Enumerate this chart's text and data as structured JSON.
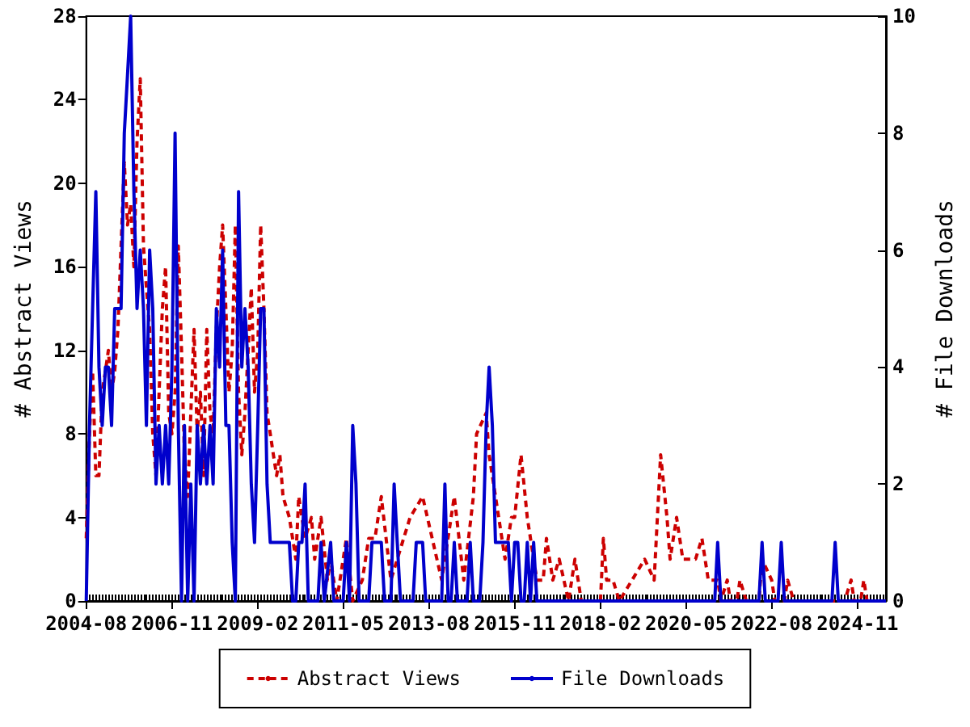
{
  "chart_data": {
    "type": "line",
    "xlabel": null,
    "ylabel": "# Abstract Views",
    "y2label": "# File Downloads",
    "xlim": [
      "2004-08",
      "2025-08"
    ],
    "xticks": [
      "2004-08",
      "2006-11",
      "2009-02",
      "2011-05",
      "2013-08",
      "2015-11",
      "2018-02",
      "2020-05",
      "2022-08",
      "2024-11"
    ],
    "ylim": [
      0,
      28
    ],
    "yticks": [
      0,
      4,
      8,
      12,
      16,
      20,
      24,
      28
    ],
    "y2lim": [
      0,
      10
    ],
    "y2ticks": [
      0,
      2,
      4,
      6,
      8,
      10
    ],
    "grid": false,
    "legend": "bottom",
    "marker": "none",
    "series": [
      {
        "name": "Abstract Views",
        "color": "#cc0000",
        "line_style": "dashed",
        "x": [
          "2004-08",
          "2004-09",
          "2004-10",
          "2004-11",
          "2004-12",
          "2005-01",
          "2005-02",
          "2005-03",
          "2005-04",
          "2005-05",
          "2005-06",
          "2005-07",
          "2005-08",
          "2005-09",
          "2005-10",
          "2005-11",
          "2005-12",
          "2006-01",
          "2006-02",
          "2006-03",
          "2006-04",
          "2006-05",
          "2006-06",
          "2006-07",
          "2006-08",
          "2006-09",
          "2006-10",
          "2006-11",
          "2006-12",
          "2007-01",
          "2007-02",
          "2007-03",
          "2007-04",
          "2007-05",
          "2007-06",
          "2007-07",
          "2007-08",
          "2007-09",
          "2007-10",
          "2007-11",
          "2007-12",
          "2008-01",
          "2008-02",
          "2008-03",
          "2008-04",
          "2008-05",
          "2008-06",
          "2008-07",
          "2008-08",
          "2008-09",
          "2008-10",
          "2008-11",
          "2008-12",
          "2009-01",
          "2009-02",
          "2009-03",
          "2009-04",
          "2009-05",
          "2009-06",
          "2009-07",
          "2009-08",
          "2009-09",
          "2009-10",
          "2009-12",
          "2010-02",
          "2010-03",
          "2010-05",
          "2010-07",
          "2010-08",
          "2010-10",
          "2010-12",
          "2011-01",
          "2011-03",
          "2011-06",
          "2011-08",
          "2011-11",
          "2012-01",
          "2012-03",
          "2012-05",
          "2012-08",
          "2012-10",
          "2013-02",
          "2013-06",
          "2013-09",
          "2013-12",
          "2014-04",
          "2014-07",
          "2014-10",
          "2014-11",
          "2015-02",
          "2015-03",
          "2015-06",
          "2015-08",
          "2015-10",
          "2015-11",
          "2016-01",
          "2016-03",
          "2016-06",
          "2016-08",
          "2016-09",
          "2016-11",
          "2017-01",
          "2017-04",
          "2017-06",
          "2017-08",
          "2017-10",
          "2018-02",
          "2018-03",
          "2018-04",
          "2018-06",
          "2018-08",
          "2018-12",
          "2019-04",
          "2019-07",
          "2019-08",
          "2019-09",
          "2019-11",
          "2019-12",
          "2020-02",
          "2020-04",
          "2020-08",
          "2020-10",
          "2020-12",
          "2021-03",
          "2021-04",
          "2021-06",
          "2021-07",
          "2021-09",
          "2021-10",
          "2021-12",
          "2022-04",
          "2022-05",
          "2022-08",
          "2022-09",
          "2022-12",
          "2023-01",
          "2023-03",
          "2024-07",
          "2024-09",
          "2024-10",
          "2024-12",
          "2025-01",
          "2025-02",
          "2025-08"
        ],
        "values": [
          3,
          8,
          11,
          6,
          6,
          10,
          11,
          12,
          10,
          11,
          13,
          17,
          21,
          18,
          19,
          16,
          22,
          25,
          17,
          15,
          13,
          8,
          6,
          10,
          14,
          16,
          9,
          8,
          10,
          17,
          12,
          7,
          5,
          9,
          13,
          8,
          10,
          6,
          13,
          9,
          8,
          13,
          16,
          18,
          14,
          10,
          12,
          18,
          10,
          7,
          9,
          12,
          15,
          10,
          12,
          18,
          14,
          9,
          8,
          7,
          6,
          7,
          5,
          4,
          2,
          5,
          3,
          4,
          2,
          4,
          1,
          2,
          0,
          3,
          0,
          1,
          3,
          3,
          5,
          1,
          2,
          4,
          5,
          3,
          1,
          5,
          1,
          5,
          8,
          9,
          7,
          4,
          2,
          4,
          4,
          7,
          4,
          1,
          1,
          3,
          1,
          2,
          0,
          2,
          0,
          0,
          0,
          3,
          1,
          1,
          0,
          1,
          2,
          1,
          4,
          7,
          4,
          2,
          4,
          2,
          2,
          3,
          1,
          1,
          0,
          1,
          0,
          0,
          1,
          0,
          0,
          2,
          1,
          0,
          0,
          1,
          0,
          0,
          1,
          0,
          0,
          1,
          0,
          0
        ]
      },
      {
        "name": "File Downloads",
        "color": "#0000cc",
        "line_style": "solid",
        "axis": "y2",
        "x": [
          "2004-08",
          "2004-09",
          "2004-10",
          "2004-11",
          "2004-12",
          "2005-01",
          "2005-02",
          "2005-03",
          "2005-04",
          "2005-05",
          "2005-06",
          "2005-07",
          "2005-08",
          "2005-09",
          "2005-10",
          "2005-11",
          "2005-12",
          "2006-01",
          "2006-02",
          "2006-03",
          "2006-04",
          "2006-05",
          "2006-06",
          "2006-07",
          "2006-08",
          "2006-09",
          "2006-10",
          "2006-11",
          "2006-12",
          "2007-01",
          "2007-02",
          "2007-03",
          "2007-04",
          "2007-05",
          "2007-06",
          "2007-07",
          "2007-08",
          "2007-09",
          "2007-10",
          "2007-11",
          "2007-12",
          "2008-01",
          "2008-02",
          "2008-03",
          "2008-04",
          "2008-05",
          "2008-06",
          "2008-07",
          "2008-08",
          "2008-09",
          "2008-10",
          "2008-11",
          "2008-12",
          "2009-01",
          "2009-02",
          "2009-03",
          "2009-04",
          "2009-05",
          "2009-06",
          "2009-07",
          "2009-08",
          "2009-12",
          "2010-01",
          "2010-02",
          "2010-03",
          "2010-04",
          "2010-05",
          "2010-06",
          "2010-09",
          "2010-10",
          "2010-11",
          "2011-01",
          "2011-02",
          "2011-05",
          "2011-06",
          "2011-07",
          "2011-08",
          "2011-09",
          "2011-10",
          "2012-01",
          "2012-02",
          "2012-03",
          "2012-04",
          "2012-05",
          "2012-06",
          "2012-08",
          "2012-09",
          "2012-10",
          "2012-11",
          "2013-03",
          "2013-04",
          "2013-06",
          "2013-07",
          "2013-12",
          "2014-01",
          "2014-02",
          "2014-03",
          "2014-04",
          "2014-05",
          "2014-08",
          "2014-09",
          "2014-10",
          "2014-12",
          "2015-01",
          "2015-02",
          "2015-03",
          "2015-04",
          "2015-05",
          "2015-06",
          "2015-07",
          "2015-09",
          "2015-10",
          "2015-11",
          "2015-12",
          "2016-01",
          "2016-02",
          "2016-03",
          "2016-04",
          "2016-05",
          "2016-06",
          "2021-02",
          "2021-03",
          "2021-04",
          "2022-04",
          "2022-05",
          "2022-06",
          "2022-10",
          "2022-11",
          "2022-12",
          "2024-03",
          "2024-04",
          "2024-05",
          "2025-08"
        ],
        "values": [
          0,
          3,
          5,
          7,
          4,
          3,
          4,
          4,
          3,
          5,
          5,
          5,
          8,
          9,
          10,
          7,
          5,
          6,
          5,
          3,
          6,
          5,
          2,
          3,
          2,
          3,
          2,
          4,
          8,
          3,
          0,
          3,
          0,
          2,
          0,
          3,
          2,
          3,
          2,
          3,
          2,
          5,
          4,
          6,
          3,
          3,
          1,
          0,
          7,
          4,
          5,
          4,
          2,
          1,
          3,
          5,
          5,
          2,
          1,
          1,
          1,
          1,
          0,
          0,
          1,
          1,
          2,
          0,
          0,
          1,
          0,
          1,
          0,
          0,
          1,
          0,
          3,
          2,
          0,
          0,
          1,
          1,
          1,
          1,
          0,
          0,
          2,
          1,
          0,
          0,
          1,
          1,
          0,
          0,
          2,
          0,
          0,
          1,
          0,
          0,
          1,
          0,
          0,
          1,
          3,
          4,
          3,
          1,
          1,
          1,
          1,
          0,
          1,
          1,
          0,
          0,
          1,
          0,
          1,
          0,
          0,
          1,
          0,
          0,
          1,
          0,
          0,
          1,
          0,
          0,
          1,
          0,
          0
        ]
      }
    ]
  }
}
